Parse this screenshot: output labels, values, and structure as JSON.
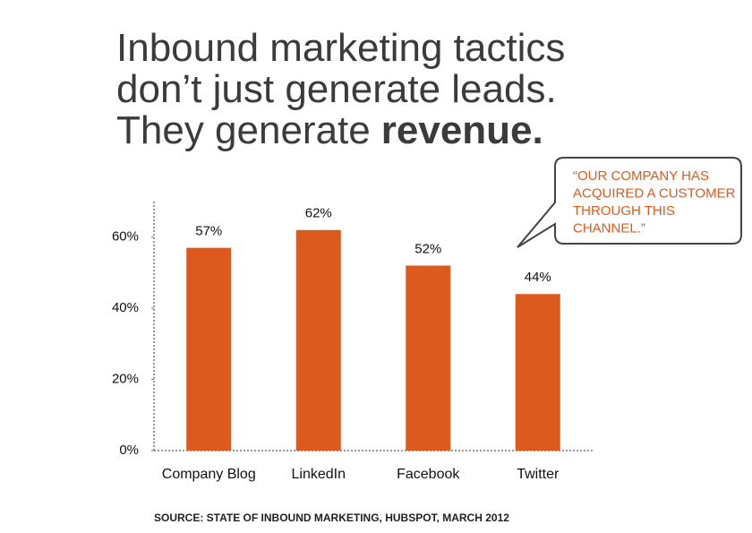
{
  "chart_data": {
    "type": "bar",
    "title": {
      "lines": [
        "Inbound marketing tactics",
        "don’t just generate leads."
      ],
      "last_line": "They generate",
      "emphasis": "revenue."
    },
    "categories": [
      "Company Blog",
      "LinkedIn",
      "Facebook",
      "Twitter"
    ],
    "values": [
      57,
      62,
      52,
      44
    ],
    "value_labels": [
      "57%",
      "62%",
      "52%",
      "44%"
    ],
    "color": "#dd5a1f",
    "ylim": [
      0,
      70
    ],
    "yticks": [
      {
        "value": 0,
        "label": "0%"
      },
      {
        "value": 20,
        "label": "20%"
      },
      {
        "value": 40,
        "label": "40%"
      },
      {
        "value": 60,
        "label": "60%"
      }
    ],
    "grid": false,
    "annotation": [
      "“OUR COMPANY HAS",
      "ACQUIRED A CUSTOMER",
      "THROUGH THIS",
      "CHANNEL.”"
    ],
    "source": "SOURCE: STATE OF INBOUND MARKETING, HUBSPOT, MARCH 2012"
  }
}
